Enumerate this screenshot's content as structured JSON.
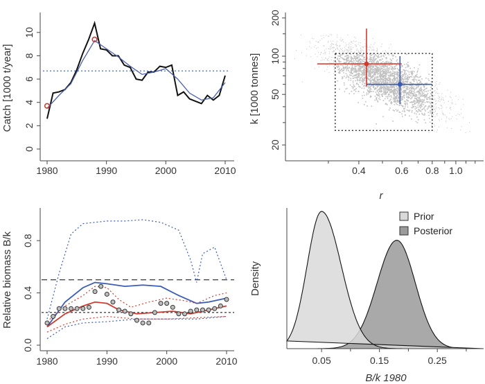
{
  "chart_data": [
    {
      "type": "line",
      "ylabel": "Catch [1000 t/year]",
      "xlabel": "",
      "xlim": [
        1980,
        2010
      ],
      "ylim": [
        0,
        11
      ],
      "x_ticks": [
        "1980",
        "1990",
        "2000",
        "2010"
      ],
      "y_ticks": [
        "0",
        "2",
        "4",
        "6",
        "8",
        "10"
      ],
      "reference_line": 6.7,
      "series": [
        {
          "name": "observed catch",
          "color": "#111111",
          "x": [
            1980,
            1981,
            1982,
            1983,
            1984,
            1985,
            1986,
            1987,
            1988,
            1989,
            1990,
            1991,
            1992,
            1993,
            1994,
            1995,
            1996,
            1997,
            1998,
            1999,
            2000,
            2001,
            2002,
            2003,
            2004,
            2005,
            2006,
            2007,
            2008,
            2009,
            2010
          ],
          "values": [
            2.6,
            4.8,
            4.9,
            5.1,
            5.7,
            6.8,
            8.2,
            9.4,
            10.8,
            8.6,
            8.5,
            8.0,
            8.0,
            7.2,
            7.0,
            6.0,
            5.9,
            6.6,
            6.6,
            7.1,
            7.0,
            7.2,
            4.6,
            4.9,
            4.3,
            4.1,
            3.9,
            4.6,
            4.2,
            4.6,
            6.3
          ]
        },
        {
          "name": "fitted catch",
          "color": "#4a5fb0",
          "x": [
            1980,
            1982,
            1984,
            1986,
            1988,
            1990,
            1992,
            1994,
            1996,
            1998,
            2000,
            2002,
            2004,
            2006,
            2008,
            2010
          ],
          "values": [
            3.5,
            4.6,
            5.6,
            7.6,
            9.3,
            8.6,
            7.9,
            7.1,
            6.4,
            6.6,
            6.9,
            6.0,
            4.8,
            4.2,
            4.4,
            5.7
          ]
        }
      ],
      "markers": [
        {
          "x": 1980,
          "y": 3.7
        },
        {
          "x": 1988,
          "y": 9.4
        }
      ]
    },
    {
      "type": "scatter",
      "title": "",
      "xlabel": "r",
      "ylabel": "k [1000 tonnes]",
      "x_scale": "log",
      "y_scale": "log",
      "xlim": [
        0.2,
        1.3
      ],
      "ylim": [
        15,
        210
      ],
      "x_ticks": [
        "0.4",
        "0.6",
        "0.8",
        "1.0"
      ],
      "y_ticks": [
        "20",
        "50",
        "100",
        "200"
      ],
      "prior_box": {
        "r": [
          0.32,
          0.8
        ],
        "k": [
          26,
          105
        ]
      },
      "estimates": [
        {
          "name": "red",
          "color": "#d03a2e",
          "r": 0.43,
          "k": 87,
          "r_range": [
            0.27,
            0.6
          ],
          "k_range": [
            58,
            165
          ]
        },
        {
          "name": "blue",
          "color": "#3a5bb8",
          "r": 0.59,
          "k": 60,
          "r_range": [
            0.43,
            0.8
          ],
          "k_range": [
            42,
            100
          ]
        }
      ]
    },
    {
      "type": "line",
      "ylabel": "Relative biomass B/k",
      "xlabel": "",
      "xlim": [
        1980,
        2010
      ],
      "ylim": [
        0,
        1.05
      ],
      "x_ticks": [
        "1980",
        "1990",
        "2000",
        "2010"
      ],
      "y_ticks": [
        "0.0",
        "0.4",
        "0.8"
      ],
      "hlines": [
        0.5,
        0.25
      ],
      "series": [
        {
          "name": "blue median",
          "color": "#3a5bb8",
          "style": "solid",
          "x": [
            1980,
            1983,
            1986,
            1988,
            1990,
            1993,
            1996,
            1999,
            2002,
            2005,
            2007,
            2010
          ],
          "values": [
            0.14,
            0.33,
            0.44,
            0.48,
            0.47,
            0.45,
            0.46,
            0.45,
            0.38,
            0.32,
            0.33,
            0.36
          ]
        },
        {
          "name": "blue upper",
          "color": "#3a5bb8",
          "style": "dotted",
          "x": [
            1980,
            1982,
            1984,
            1986,
            1988,
            1990,
            1993,
            1996,
            1999,
            2002,
            2004,
            2005,
            2006,
            2008,
            2010
          ],
          "values": [
            0.2,
            0.55,
            0.85,
            0.93,
            0.94,
            0.95,
            0.95,
            0.96,
            0.94,
            0.88,
            0.65,
            0.48,
            0.7,
            0.75,
            0.5
          ]
        },
        {
          "name": "blue lower",
          "color": "#3a5bb8",
          "style": "dotted",
          "x": [
            1980,
            1983,
            1986,
            1990,
            1995,
            2000,
            2005,
            2010
          ],
          "values": [
            0.05,
            0.14,
            0.17,
            0.18,
            0.2,
            0.2,
            0.2,
            0.22
          ]
        },
        {
          "name": "red median",
          "color": "#d03a2e",
          "style": "solid",
          "x": [
            1980,
            1983,
            1986,
            1988,
            1990,
            1992,
            1995,
            1998,
            2001,
            2004,
            2007,
            2010
          ],
          "values": [
            0.14,
            0.24,
            0.3,
            0.33,
            0.32,
            0.27,
            0.24,
            0.25,
            0.26,
            0.24,
            0.27,
            0.3
          ]
        },
        {
          "name": "red upper",
          "color": "#d03a2e",
          "style": "dotted",
          "x": [
            1980,
            1983,
            1986,
            1988,
            1990,
            1992,
            1994,
            1997,
            2000,
            2003,
            2005,
            2008,
            2010
          ],
          "values": [
            0.18,
            0.3,
            0.38,
            0.45,
            0.44,
            0.35,
            0.29,
            0.33,
            0.36,
            0.34,
            0.32,
            0.38,
            0.4
          ]
        },
        {
          "name": "red lower",
          "color": "#d03a2e",
          "style": "dotted",
          "x": [
            1980,
            1983,
            1986,
            1990,
            1995,
            2000,
            2005,
            2010
          ],
          "values": [
            0.1,
            0.16,
            0.2,
            0.22,
            0.2,
            0.2,
            0.21,
            0.22
          ]
        }
      ],
      "points": {
        "x": [
          1980,
          1981,
          1982,
          1983,
          1984,
          1985,
          1986,
          1987,
          1988,
          1989,
          1990,
          1991,
          1992,
          1993,
          1994,
          1995,
          1996,
          1997,
          1998,
          1999,
          2000,
          2001,
          2002,
          2003,
          2004,
          2005,
          2006,
          2007,
          2008,
          2009,
          2010
        ],
        "values": [
          0.17,
          0.22,
          0.28,
          0.28,
          0.28,
          0.28,
          0.28,
          0.29,
          0.41,
          0.45,
          0.39,
          0.33,
          0.27,
          0.26,
          0.24,
          0.19,
          0.17,
          0.17,
          0.25,
          0.32,
          0.32,
          0.29,
          0.24,
          0.24,
          0.26,
          0.27,
          0.27,
          0.27,
          0.28,
          0.3,
          0.35
        ]
      }
    },
    {
      "type": "area",
      "xlabel": "B/k 1980",
      "ylabel": "Density",
      "xlim": [
        -0.01,
        0.33
      ],
      "x_ticks": [
        "0.05",
        "0.15",
        "0.25"
      ],
      "legend_position": "top-right",
      "series": [
        {
          "name": "Prior",
          "color": "#d9d9d9",
          "mean": 0.05,
          "sd_left": 0.025,
          "sd_right": 0.034,
          "peak": 1.0
        },
        {
          "name": "Posterior",
          "color": "#9a9a9a",
          "mean": 0.18,
          "sd_left": 0.034,
          "sd_right": 0.032,
          "peak": 0.79
        }
      ]
    }
  ]
}
